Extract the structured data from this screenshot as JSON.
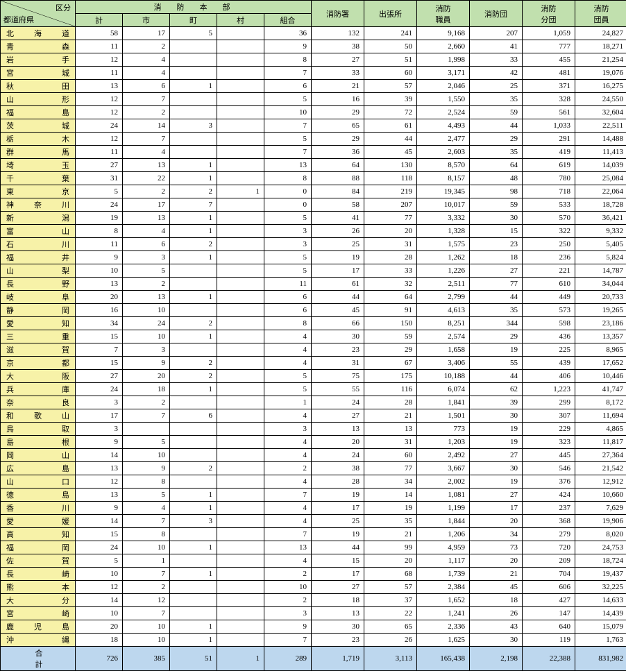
{
  "header": {
    "corner_top": "区分",
    "corner_bottom": "都道府県",
    "group_hq": "消防本部",
    "sub": {
      "kei": "計",
      "shi": "市",
      "machi": "町",
      "mura": "村",
      "kumiai": "組合"
    },
    "cols": {
      "sho": "消防署",
      "shucchou": "出張所",
      "shokuin": "消防\n職員",
      "dan": "消防団",
      "bundan": "消防\n分団",
      "danin": "消防\n団員"
    }
  },
  "colors": {
    "header_bg": "#c1e0ae",
    "pref_bg": "#f7f2a8",
    "total_bg": "#bdd7ee",
    "border": "#000000"
  },
  "totals_label": "合計",
  "totals": {
    "kei": "726",
    "shi": "385",
    "machi": "51",
    "mura": "1",
    "kumiai": "289",
    "sho": "1,719",
    "shucchou": "3,113",
    "shokuin": "165,438",
    "dan": "2,198",
    "bundan": "22,388",
    "danin": "831,982"
  },
  "groups": [
    [
      {
        "pref": "北海道",
        "kei": "58",
        "shi": "17",
        "machi": "5",
        "mura": "",
        "kumiai": "36",
        "sho": "132",
        "shucchou": "241",
        "shokuin": "9,168",
        "dan": "207",
        "bundan": "1,059",
        "danin": "24,827"
      },
      {
        "pref": "青森",
        "kei": "11",
        "shi": "2",
        "machi": "",
        "mura": "",
        "kumiai": "9",
        "sho": "38",
        "shucchou": "50",
        "shokuin": "2,660",
        "dan": "41",
        "bundan": "777",
        "danin": "18,271"
      },
      {
        "pref": "岩手",
        "kei": "12",
        "shi": "4",
        "machi": "",
        "mura": "",
        "kumiai": "8",
        "sho": "27",
        "shucchou": "51",
        "shokuin": "1,998",
        "dan": "33",
        "bundan": "455",
        "danin": "21,254"
      },
      {
        "pref": "宮城",
        "kei": "11",
        "shi": "4",
        "machi": "",
        "mura": "",
        "kumiai": "7",
        "sho": "33",
        "shucchou": "60",
        "shokuin": "3,171",
        "dan": "42",
        "bundan": "481",
        "danin": "19,076"
      },
      {
        "pref": "秋田",
        "kei": "13",
        "shi": "6",
        "machi": "1",
        "mura": "",
        "kumiai": "6",
        "sho": "21",
        "shucchou": "57",
        "shokuin": "2,046",
        "dan": "25",
        "bundan": "371",
        "danin": "16,275"
      },
      {
        "pref": "山形",
        "kei": "12",
        "shi": "7",
        "machi": "",
        "mura": "",
        "kumiai": "5",
        "sho": "16",
        "shucchou": "39",
        "shokuin": "1,550",
        "dan": "35",
        "bundan": "328",
        "danin": "24,550"
      },
      {
        "pref": "福島",
        "kei": "12",
        "shi": "2",
        "machi": "",
        "mura": "",
        "kumiai": "10",
        "sho": "29",
        "shucchou": "72",
        "shokuin": "2,524",
        "dan": "59",
        "bundan": "561",
        "danin": "32,604"
      }
    ],
    [
      {
        "pref": "茨城",
        "kei": "24",
        "shi": "14",
        "machi": "3",
        "mura": "",
        "kumiai": "7",
        "sho": "65",
        "shucchou": "61",
        "shokuin": "4,493",
        "dan": "44",
        "bundan": "1,033",
        "danin": "22,511"
      },
      {
        "pref": "栃木",
        "kei": "12",
        "shi": "7",
        "machi": "",
        "mura": "",
        "kumiai": "5",
        "sho": "29",
        "shucchou": "44",
        "shokuin": "2,477",
        "dan": "29",
        "bundan": "291",
        "danin": "14,488"
      },
      {
        "pref": "群馬",
        "kei": "11",
        "shi": "4",
        "machi": "",
        "mura": "",
        "kumiai": "7",
        "sho": "36",
        "shucchou": "45",
        "shokuin": "2,603",
        "dan": "35",
        "bundan": "419",
        "danin": "11,413"
      },
      {
        "pref": "埼玉",
        "kei": "27",
        "shi": "13",
        "machi": "1",
        "mura": "",
        "kumiai": "13",
        "sho": "64",
        "shucchou": "130",
        "shokuin": "8,570",
        "dan": "64",
        "bundan": "619",
        "danin": "14,039"
      },
      {
        "pref": "千葉",
        "kei": "31",
        "shi": "22",
        "machi": "1",
        "mura": "",
        "kumiai": "8",
        "sho": "88",
        "shucchou": "118",
        "shokuin": "8,157",
        "dan": "48",
        "bundan": "780",
        "danin": "25,084"
      },
      {
        "pref": "東京",
        "kei": "5",
        "shi": "2",
        "machi": "2",
        "mura": "1",
        "kumiai": "0",
        "sho": "84",
        "shucchou": "219",
        "shokuin": "19,345",
        "dan": "98",
        "bundan": "718",
        "danin": "22,064"
      },
      {
        "pref": "神奈川",
        "kei": "24",
        "shi": "17",
        "machi": "7",
        "mura": "",
        "kumiai": "0",
        "sho": "58",
        "shucchou": "207",
        "shokuin": "10,017",
        "dan": "59",
        "bundan": "533",
        "danin": "18,728"
      }
    ],
    [
      {
        "pref": "新潟",
        "kei": "19",
        "shi": "13",
        "machi": "1",
        "mura": "",
        "kumiai": "5",
        "sho": "41",
        "shucchou": "77",
        "shokuin": "3,332",
        "dan": "30",
        "bundan": "570",
        "danin": "36,421"
      },
      {
        "pref": "富山",
        "kei": "8",
        "shi": "4",
        "machi": "1",
        "mura": "",
        "kumiai": "3",
        "sho": "26",
        "shucchou": "20",
        "shokuin": "1,328",
        "dan": "15",
        "bundan": "322",
        "danin": "9,332"
      },
      {
        "pref": "石川",
        "kei": "11",
        "shi": "6",
        "machi": "2",
        "mura": "",
        "kumiai": "3",
        "sho": "25",
        "shucchou": "31",
        "shokuin": "1,575",
        "dan": "23",
        "bundan": "250",
        "danin": "5,405"
      },
      {
        "pref": "福井",
        "kei": "9",
        "shi": "3",
        "machi": "1",
        "mura": "",
        "kumiai": "5",
        "sho": "19",
        "shucchou": "28",
        "shokuin": "1,262",
        "dan": "18",
        "bundan": "236",
        "danin": "5,824"
      }
    ],
    [
      {
        "pref": "山梨",
        "kei": "10",
        "shi": "5",
        "machi": "",
        "mura": "",
        "kumiai": "5",
        "sho": "17",
        "shucchou": "33",
        "shokuin": "1,226",
        "dan": "27",
        "bundan": "221",
        "danin": "14,787"
      },
      {
        "pref": "長野",
        "kei": "13",
        "shi": "2",
        "machi": "",
        "mura": "",
        "kumiai": "11",
        "sho": "61",
        "shucchou": "32",
        "shokuin": "2,511",
        "dan": "77",
        "bundan": "610",
        "danin": "34,044"
      },
      {
        "pref": "岐阜",
        "kei": "20",
        "shi": "13",
        "machi": "1",
        "mura": "",
        "kumiai": "6",
        "sho": "44",
        "shucchou": "64",
        "shokuin": "2,799",
        "dan": "44",
        "bundan": "449",
        "danin": "20,733"
      },
      {
        "pref": "静岡",
        "kei": "16",
        "shi": "10",
        "machi": "",
        "mura": "",
        "kumiai": "6",
        "sho": "45",
        "shucchou": "91",
        "shokuin": "4,613",
        "dan": "35",
        "bundan": "573",
        "danin": "19,265"
      },
      {
        "pref": "愛知",
        "kei": "34",
        "shi": "24",
        "machi": "2",
        "mura": "",
        "kumiai": "8",
        "sho": "66",
        "shucchou": "150",
        "shokuin": "8,251",
        "dan": "344",
        "bundan": "598",
        "danin": "23,186"
      },
      {
        "pref": "三重",
        "kei": "15",
        "shi": "10",
        "machi": "1",
        "mura": "",
        "kumiai": "4",
        "sho": "30",
        "shucchou": "59",
        "shokuin": "2,574",
        "dan": "29",
        "bundan": "436",
        "danin": "13,357"
      }
    ],
    [
      {
        "pref": "滋賀",
        "kei": "7",
        "shi": "3",
        "machi": "",
        "mura": "",
        "kumiai": "4",
        "sho": "23",
        "shucchou": "29",
        "shokuin": "1,658",
        "dan": "19",
        "bundan": "225",
        "danin": "8,965"
      },
      {
        "pref": "京都",
        "kei": "15",
        "shi": "9",
        "machi": "2",
        "mura": "",
        "kumiai": "4",
        "sho": "31",
        "shucchou": "67",
        "shokuin": "3,406",
        "dan": "55",
        "bundan": "439",
        "danin": "17,652"
      },
      {
        "pref": "大阪",
        "kei": "27",
        "shi": "20",
        "machi": "2",
        "mura": "",
        "kumiai": "5",
        "sho": "75",
        "shucchou": "175",
        "shokuin": "10,188",
        "dan": "44",
        "bundan": "406",
        "danin": "10,446"
      },
      {
        "pref": "兵庫",
        "kei": "24",
        "shi": "18",
        "machi": "1",
        "mura": "",
        "kumiai": "5",
        "sho": "55",
        "shucchou": "116",
        "shokuin": "6,074",
        "dan": "62",
        "bundan": "1,223",
        "danin": "41,747"
      },
      {
        "pref": "奈良",
        "kei": "3",
        "shi": "2",
        "machi": "",
        "mura": "",
        "kumiai": "1",
        "sho": "24",
        "shucchou": "28",
        "shokuin": "1,841",
        "dan": "39",
        "bundan": "299",
        "danin": "8,172"
      },
      {
        "pref": "和歌山",
        "kei": "17",
        "shi": "7",
        "machi": "6",
        "mura": "",
        "kumiai": "4",
        "sho": "27",
        "shucchou": "21",
        "shokuin": "1,501",
        "dan": "30",
        "bundan": "307",
        "danin": "11,694"
      }
    ],
    [
      {
        "pref": "鳥取",
        "kei": "3",
        "shi": "",
        "machi": "",
        "mura": "",
        "kumiai": "3",
        "sho": "13",
        "shucchou": "13",
        "shokuin": "773",
        "dan": "19",
        "bundan": "229",
        "danin": "4,865"
      },
      {
        "pref": "島根",
        "kei": "9",
        "shi": "5",
        "machi": "",
        "mura": "",
        "kumiai": "4",
        "sho": "20",
        "shucchou": "31",
        "shokuin": "1,203",
        "dan": "19",
        "bundan": "323",
        "danin": "11,817"
      },
      {
        "pref": "岡山",
        "kei": "14",
        "shi": "10",
        "machi": "",
        "mura": "",
        "kumiai": "4",
        "sho": "24",
        "shucchou": "60",
        "shokuin": "2,492",
        "dan": "27",
        "bundan": "445",
        "danin": "27,364"
      },
      {
        "pref": "広島",
        "kei": "13",
        "shi": "9",
        "machi": "2",
        "mura": "",
        "kumiai": "2",
        "sho": "38",
        "shucchou": "77",
        "shokuin": "3,667",
        "dan": "30",
        "bundan": "546",
        "danin": "21,542"
      },
      {
        "pref": "山口",
        "kei": "12",
        "shi": "8",
        "machi": "",
        "mura": "",
        "kumiai": "4",
        "sho": "28",
        "shucchou": "34",
        "shokuin": "2,002",
        "dan": "19",
        "bundan": "376",
        "danin": "12,912"
      }
    ],
    [
      {
        "pref": "徳島",
        "kei": "13",
        "shi": "5",
        "machi": "1",
        "mura": "",
        "kumiai": "7",
        "sho": "19",
        "shucchou": "14",
        "shokuin": "1,081",
        "dan": "27",
        "bundan": "424",
        "danin": "10,660"
      },
      {
        "pref": "香川",
        "kei": "9",
        "shi": "4",
        "machi": "1",
        "mura": "",
        "kumiai": "4",
        "sho": "17",
        "shucchou": "19",
        "shokuin": "1,199",
        "dan": "17",
        "bundan": "237",
        "danin": "7,629"
      },
      {
        "pref": "愛媛",
        "kei": "14",
        "shi": "7",
        "machi": "3",
        "mura": "",
        "kumiai": "4",
        "sho": "25",
        "shucchou": "35",
        "shokuin": "1,844",
        "dan": "20",
        "bundan": "368",
        "danin": "19,906"
      },
      {
        "pref": "高知",
        "kei": "15",
        "shi": "8",
        "machi": "",
        "mura": "",
        "kumiai": "7",
        "sho": "19",
        "shucchou": "21",
        "shokuin": "1,206",
        "dan": "34",
        "bundan": "279",
        "danin": "8,020"
      }
    ],
    [
      {
        "pref": "福岡",
        "kei": "24",
        "shi": "10",
        "machi": "1",
        "mura": "",
        "kumiai": "13",
        "sho": "44",
        "shucchou": "99",
        "shokuin": "4,959",
        "dan": "73",
        "bundan": "720",
        "danin": "24,753"
      },
      {
        "pref": "佐賀",
        "kei": "5",
        "shi": "1",
        "machi": "",
        "mura": "",
        "kumiai": "4",
        "sho": "15",
        "shucchou": "20",
        "shokuin": "1,117",
        "dan": "20",
        "bundan": "209",
        "danin": "18,724"
      },
      {
        "pref": "長崎",
        "kei": "10",
        "shi": "7",
        "machi": "1",
        "mura": "",
        "kumiai": "2",
        "sho": "17",
        "shucchou": "68",
        "shokuin": "1,739",
        "dan": "21",
        "bundan": "704",
        "danin": "19,437"
      },
      {
        "pref": "熊本",
        "kei": "12",
        "shi": "2",
        "machi": "",
        "mura": "",
        "kumiai": "10",
        "sho": "27",
        "shucchou": "57",
        "shokuin": "2,384",
        "dan": "45",
        "bundan": "606",
        "danin": "32,225"
      },
      {
        "pref": "大分",
        "kei": "14",
        "shi": "12",
        "machi": "",
        "mura": "",
        "kumiai": "2",
        "sho": "18",
        "shucchou": "37",
        "shokuin": "1,652",
        "dan": "18",
        "bundan": "427",
        "danin": "14,633"
      },
      {
        "pref": "宮崎",
        "kei": "10",
        "shi": "7",
        "machi": "",
        "mura": "",
        "kumiai": "3",
        "sho": "13",
        "shucchou": "22",
        "shokuin": "1,241",
        "dan": "26",
        "bundan": "147",
        "danin": "14,439"
      },
      {
        "pref": "鹿児島",
        "kei": "20",
        "shi": "10",
        "machi": "1",
        "mura": "",
        "kumiai": "9",
        "sho": "30",
        "shucchou": "65",
        "shokuin": "2,336",
        "dan": "43",
        "bundan": "640",
        "danin": "15,079"
      },
      {
        "pref": "沖縄",
        "kei": "18",
        "shi": "10",
        "machi": "1",
        "mura": "",
        "kumiai": "7",
        "sho": "23",
        "shucchou": "26",
        "shokuin": "1,625",
        "dan": "30",
        "bundan": "119",
        "danin": "1,763"
      }
    ]
  ]
}
